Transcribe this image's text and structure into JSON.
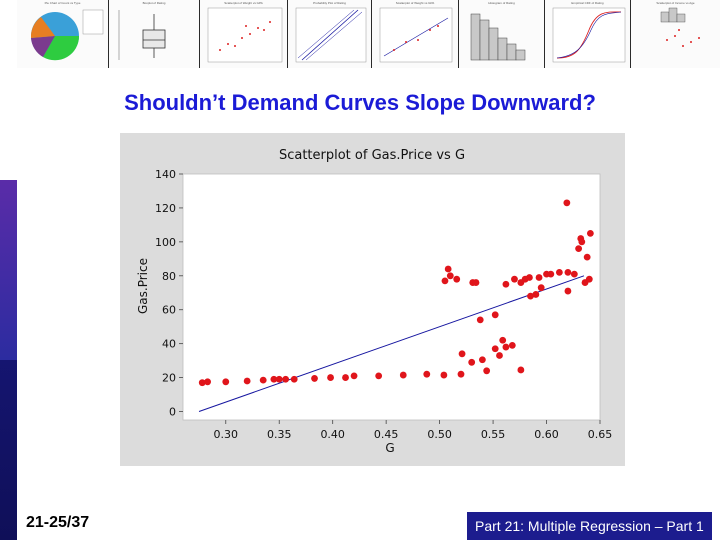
{
  "slide": {
    "title": "Shouldn’t Demand Curves Slope Downward?",
    "slide_number": "21-25/37",
    "footer": "Part 21: Multiple Regression – Part 1",
    "colors": {
      "title": "#1b1bd6",
      "footer_bg": "#1c1c8e",
      "left_bar": [
        "#5a2ca8",
        "#2c2ca0",
        "#151570",
        "#0f0f58"
      ]
    }
  },
  "thumbnails": [
    {
      "title": "Pie Chart of Count vs Type",
      "kind": "pie"
    },
    {
      "title": "Boxplot of Rating",
      "kind": "boxplot"
    },
    {
      "title": "Scatterplot of Weight vs GPA",
      "kind": "scatter"
    },
    {
      "title": "Probability Plot of Rating",
      "kind": "probability"
    },
    {
      "title": "Scatterplot of Weight vs GPA",
      "kind": "scatter-fit"
    },
    {
      "title": "Histogram of Rating",
      "kind": "histogram"
    },
    {
      "title": "Empirical CDF of Rating",
      "kind": "cdf"
    },
    {
      "title": "Scatterplot of Income vs Age",
      "kind": "scatter-hist"
    }
  ],
  "chart_data": {
    "type": "scatter",
    "title": "Scatterplot of Gas.Price vs G",
    "xlabel": "G",
    "ylabel": "Gas.Price",
    "xlim": [
      0.26,
      0.65
    ],
    "ylim": [
      -5,
      140
    ],
    "xticks": [
      0.3,
      0.35,
      0.4,
      0.45,
      0.5,
      0.55,
      0.6,
      0.65
    ],
    "xtick_labels": [
      "0.30",
      "0.35",
      "0.40",
      "0.45",
      "0.50",
      "0.55",
      "0.60",
      "0.65"
    ],
    "yticks": [
      0,
      20,
      40,
      60,
      80,
      100,
      120,
      140
    ],
    "ytick_labels": [
      "0",
      "20",
      "40",
      "60",
      "80",
      "100",
      "120",
      "140"
    ],
    "grid": false,
    "legend": "none",
    "points": [
      [
        0.278,
        17
      ],
      [
        0.283,
        17.5
      ],
      [
        0.3,
        17.5
      ],
      [
        0.32,
        18
      ],
      [
        0.335,
        18.5
      ],
      [
        0.345,
        19
      ],
      [
        0.35,
        19
      ],
      [
        0.356,
        19
      ],
      [
        0.364,
        19
      ],
      [
        0.383,
        19.5
      ],
      [
        0.398,
        20
      ],
      [
        0.412,
        20
      ],
      [
        0.42,
        21
      ],
      [
        0.443,
        21
      ],
      [
        0.466,
        21.5
      ],
      [
        0.488,
        22
      ],
      [
        0.504,
        21.5
      ],
      [
        0.52,
        22
      ],
      [
        0.53,
        29
      ],
      [
        0.54,
        30.5
      ],
      [
        0.556,
        33
      ],
      [
        0.562,
        38
      ],
      [
        0.568,
        39
      ],
      [
        0.576,
        24.5
      ],
      [
        0.521,
        34
      ],
      [
        0.544,
        24
      ],
      [
        0.552,
        37
      ],
      [
        0.559,
        42
      ],
      [
        0.505,
        77
      ],
      [
        0.508,
        84
      ],
      [
        0.51,
        80
      ],
      [
        0.516,
        78
      ],
      [
        0.531,
        76
      ],
      [
        0.534,
        76
      ],
      [
        0.538,
        54
      ],
      [
        0.552,
        57
      ],
      [
        0.562,
        75
      ],
      [
        0.57,
        78
      ],
      [
        0.576,
        76
      ],
      [
        0.58,
        78
      ],
      [
        0.584,
        79
      ],
      [
        0.585,
        68
      ],
      [
        0.59,
        69
      ],
      [
        0.593,
        79
      ],
      [
        0.595,
        73
      ],
      [
        0.6,
        81
      ],
      [
        0.604,
        81
      ],
      [
        0.612,
        82
      ],
      [
        0.62,
        82
      ],
      [
        0.626,
        81
      ],
      [
        0.63,
        96
      ],
      [
        0.632,
        102
      ],
      [
        0.633,
        100
      ],
      [
        0.638,
        91
      ],
      [
        0.62,
        71
      ],
      [
        0.636,
        76
      ],
      [
        0.619,
        123
      ],
      [
        0.641,
        105
      ],
      [
        0.64,
        78
      ]
    ],
    "fit_line": {
      "x": [
        0.275,
        0.635
      ],
      "y": [
        0,
        80
      ]
    },
    "colors": {
      "points": "#e0151b",
      "line": "#1616a0",
      "panel": "#dcdcdc",
      "plot": "#ffffff"
    }
  }
}
